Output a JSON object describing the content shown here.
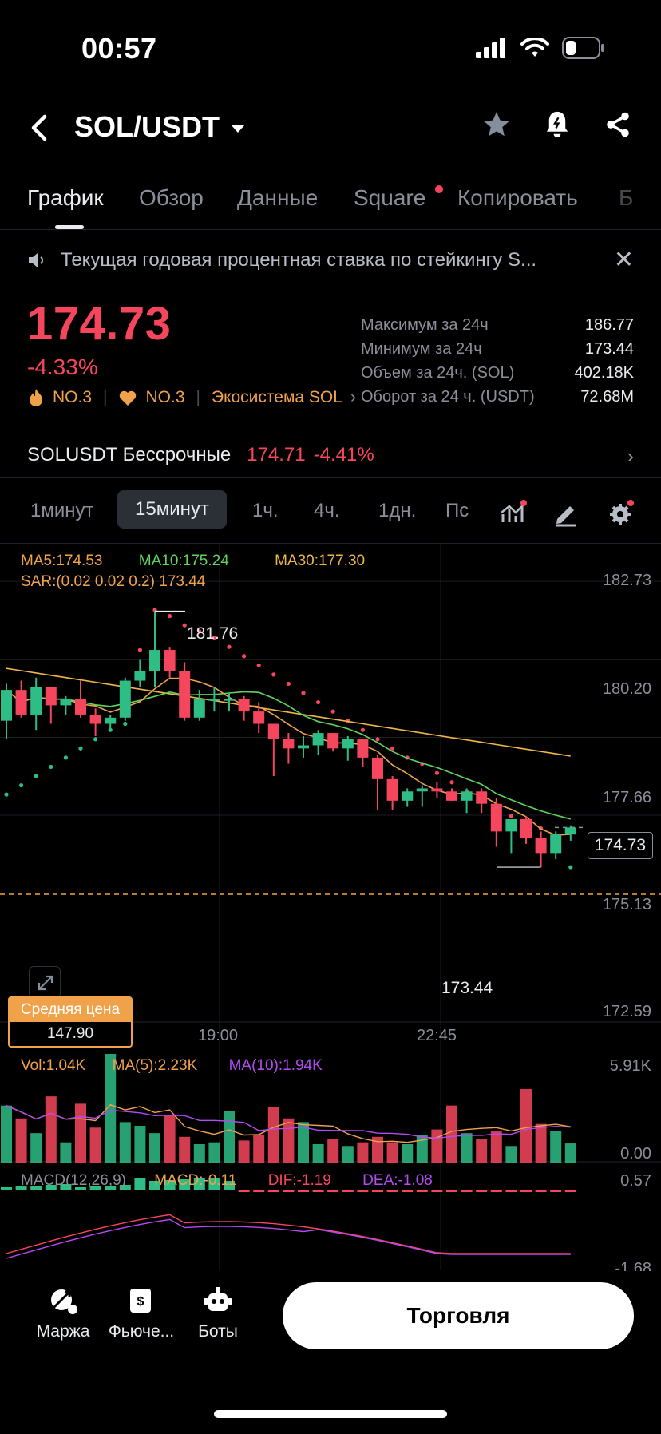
{
  "status_bar": {
    "time": "00:57"
  },
  "header": {
    "pair": "SOL/USDT"
  },
  "tabs": [
    {
      "label": "График",
      "active": true
    },
    {
      "label": "Обзор"
    },
    {
      "label": "Данные"
    },
    {
      "label": "Square",
      "dot": true
    },
    {
      "label": "Копировать"
    },
    {
      "label": "Б"
    }
  ],
  "notice": {
    "text": "Текущая годовая процентная ставка по стейкингу S..."
  },
  "price": {
    "last": "174.73",
    "change_pct": "-4.33%",
    "rank1": "NO.3",
    "rank2": "NO.3",
    "ecosystem": "Экосистема SOL"
  },
  "stats": [
    {
      "label": "Максимум за 24ч",
      "value": "186.77"
    },
    {
      "label": "Минимум за 24ч",
      "value": "173.44"
    },
    {
      "label": "Объем за 24ч. (SOL)",
      "value": "402.18K"
    },
    {
      "label": "Оборот за 24 ч. (USDT)",
      "value": "72.68M"
    }
  ],
  "perpetual": {
    "name": "SOLUSDT Бессрочные",
    "price": "174.71",
    "change": "-4.41%"
  },
  "intervals": [
    "1минут",
    "15минут",
    "1ч.",
    "4ч.",
    "1дн.",
    "Пс"
  ],
  "active_interval": "15минут",
  "legend": {
    "ma5": "MA5:174.53",
    "ma10": "MA10:175.24",
    "ma30": "MA30:177.30",
    "sar": "SAR:(0.02 0.02 0.2) 173.44"
  },
  "volume_legend": {
    "vol": "Vol:1.04K",
    "ma5": "MA(5):2.23K",
    "ma10": "MA(10):1.94K"
  },
  "macd_legend": {
    "label": "MACD(12,26,9)",
    "macd": "MACD:-0.11",
    "dif": "DIF:-1.19",
    "dea": "DEA:-1.08"
  },
  "annotations": {
    "high": "181.76",
    "low": "173.44",
    "current": "174.73"
  },
  "avg_price": {
    "label": "Средняя цена",
    "value": "147.90"
  },
  "colors": {
    "up": "#2ebd85",
    "down": "#f6465d",
    "ma5": "#f0a24b",
    "ma10": "#5fd35f",
    "ma30": "#f0b64b",
    "sar_up": "#2ebd85",
    "sar_down": "#f6465d",
    "macd_purple": "#b24bf0"
  },
  "chart_data": {
    "type": "candlestick",
    "x_tick_labels": [
      "19:00",
      "22:45"
    ],
    "y_tick_labels": [
      "182.73",
      "180.20",
      "177.66",
      "175.13",
      "172.59"
    ],
    "volume_axis": [
      "5.91K",
      "0.00"
    ],
    "macd_axis": [
      "0.57",
      "-1.68"
    ],
    "ohlc": [
      [
        178.2,
        179.4,
        177.6,
        179.2
      ],
      [
        179.2,
        179.5,
        178.3,
        178.4
      ],
      [
        178.4,
        179.6,
        177.9,
        179.3
      ],
      [
        179.3,
        179.3,
        178.1,
        178.7
      ],
      [
        178.7,
        179.0,
        178.4,
        178.9
      ],
      [
        178.9,
        179.5,
        178.3,
        178.4
      ],
      [
        178.4,
        178.6,
        177.7,
        178.1
      ],
      [
        178.1,
        178.4,
        177.9,
        178.3
      ],
      [
        178.3,
        179.6,
        178.2,
        179.5
      ],
      [
        179.5,
        180.2,
        179.3,
        179.8
      ],
      [
        179.8,
        181.76,
        179.3,
        180.5
      ],
      [
        180.5,
        180.6,
        179.6,
        179.8
      ],
      [
        179.8,
        180.1,
        178.2,
        178.3
      ],
      [
        178.3,
        179.2,
        178.2,
        178.9
      ],
      [
        178.9,
        179.3,
        178.5,
        178.9
      ],
      [
        178.9,
        179.1,
        178.5,
        178.9
      ],
      [
        178.9,
        179.0,
        178.2,
        178.5
      ],
      [
        178.5,
        178.8,
        177.8,
        178.1
      ],
      [
        178.1,
        178.1,
        176.4,
        177.6
      ],
      [
        177.6,
        177.8,
        176.8,
        177.3
      ],
      [
        177.3,
        177.7,
        177.0,
        177.4
      ],
      [
        177.4,
        177.9,
        177.1,
        177.8
      ],
      [
        177.8,
        177.8,
        177.2,
        177.3
      ],
      [
        177.3,
        177.7,
        176.9,
        177.6
      ],
      [
        177.6,
        177.6,
        176.7,
        177.0
      ],
      [
        177.0,
        177.1,
        175.3,
        176.3
      ],
      [
        176.3,
        176.4,
        175.3,
        175.6
      ],
      [
        175.6,
        176.0,
        175.4,
        175.9
      ],
      [
        175.9,
        176.1,
        175.4,
        176.0
      ],
      [
        176.0,
        176.2,
        175.7,
        175.9
      ],
      [
        175.9,
        176.0,
        175.6,
        175.6
      ],
      [
        175.6,
        176.0,
        175.2,
        175.9
      ],
      [
        175.9,
        176.0,
        175.2,
        175.5
      ],
      [
        175.5,
        175.7,
        174.1,
        174.6
      ],
      [
        174.6,
        175.0,
        173.9,
        175.0
      ],
      [
        175.0,
        175.1,
        174.2,
        174.4
      ],
      [
        174.4,
        174.6,
        173.44,
        173.9
      ],
      [
        173.9,
        174.6,
        173.7,
        174.5
      ],
      [
        174.5,
        174.8,
        174.3,
        174.73
      ]
    ],
    "volume": [
      3.1,
      2.4,
      1.6,
      3.6,
      1.1,
      3.2,
      1.9,
      5.91,
      2.2,
      2.0,
      1.6,
      2.6,
      1.4,
      1.0,
      1.1,
      2.8,
      1.2,
      1.5,
      3.0,
      2.4,
      2.2,
      1.0,
      1.3,
      0.9,
      1.1,
      1.4,
      1.1,
      1.0,
      1.5,
      1.8,
      3.1,
      1.6,
      1.3,
      1.7,
      0.9,
      4.0,
      2.1,
      1.7,
      1.04
    ],
    "sar": [
      175.8,
      176.1,
      176.4,
      176.7,
      177.0,
      177.3,
      177.6,
      177.9,
      178.1,
      180.5,
      181.8,
      181.6,
      181.3,
      181.1,
      180.9,
      180.6,
      180.3,
      180.0,
      179.7,
      179.4,
      179.1,
      178.8,
      178.5,
      178.2,
      177.9,
      177.6,
      177.3,
      177.0,
      176.8,
      176.5,
      176.2,
      175.9,
      175.6,
      175.3,
      175.1,
      174.9,
      174.7,
      174.4,
      173.44
    ]
  }
}
